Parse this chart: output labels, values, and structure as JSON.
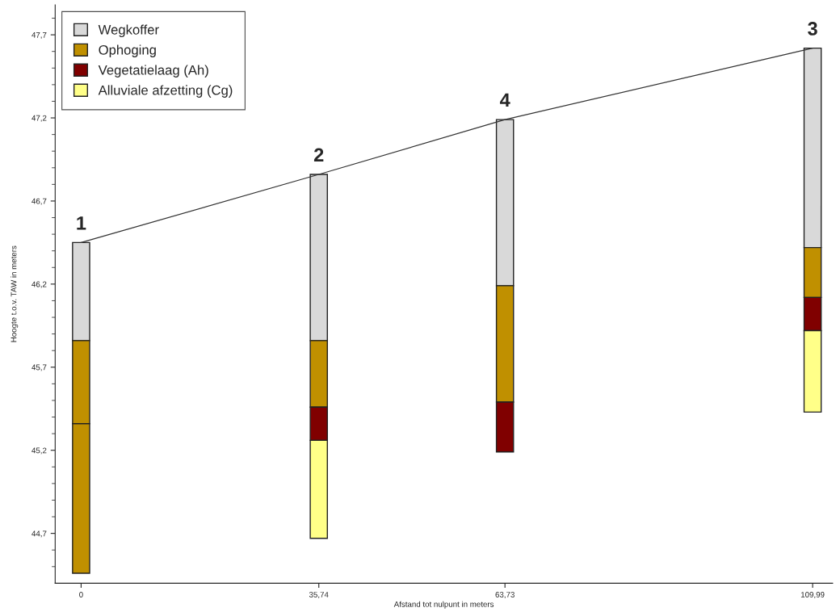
{
  "chart_data": {
    "type": "bar",
    "xlabel": "Afstand tot nulpunt in meters",
    "ylabel": "Hoogte t.o.v. TAW in meters",
    "xlim": [
      -3.9,
      113
    ],
    "ylim": [
      44.4,
      47.88
    ],
    "xticks": [
      0,
      {
        "value": 35.74,
        "label": "35,74"
      },
      {
        "value": 63.73,
        "label": "63,73"
      },
      {
        "value": 109.99,
        "label": "109,99"
      }
    ],
    "yticks": [
      {
        "value": 44.7,
        "label": "44,7"
      },
      {
        "value": 45.2,
        "label": "45,2"
      },
      {
        "value": 45.7,
        "label": "45,7"
      },
      {
        "value": 46.2,
        "label": "46,2"
      },
      {
        "value": 46.7,
        "label": "46,7"
      },
      {
        "value": 47.2,
        "label": "47,2"
      },
      {
        "value": 47.7,
        "label": "47,7"
      }
    ],
    "grid": false,
    "legend": "top left",
    "series": [
      {
        "name": "Wegkoffer",
        "color": "#d9d9d9",
        "x": [
          0,
          35.74,
          63.73,
          109.99
        ],
        "base": [
          45.86,
          45.86,
          46.19,
          46.42
        ],
        "values": [
          0.59,
          1.0,
          1.0,
          1.2
        ]
      },
      {
        "name": "Ophoging",
        "color": "#c09000",
        "x": [
          0,
          35.74,
          63.73,
          109.99
        ],
        "base": [
          45.36,
          45.46,
          45.49,
          46.12
        ],
        "values": [
          0.5,
          0.4,
          0.7,
          0.3
        ]
      },
      {
        "color": "#c09000",
        "x": [
          0
        ],
        "base": [
          44.46
        ],
        "values": [
          0.9
        ]
      },
      {
        "name": "Vegetatielaag (Ah)",
        "color": "#800000",
        "x": [
          35.74,
          63.73,
          109.99
        ],
        "base": [
          45.26,
          45.19,
          45.92
        ],
        "values": [
          0.2,
          0.3,
          0.2
        ]
      },
      {
        "name": "Alluviale afzetting (Cg)",
        "color": "#ffff88",
        "x": [
          35.74,
          109.99
        ],
        "base": [
          44.67,
          45.43
        ],
        "values": [
          0.59,
          0.49
        ]
      },
      {
        "type": "line",
        "color": "#333333",
        "x": [
          0,
          35.74,
          63.73,
          109.99
        ],
        "values": [
          46.45,
          46.86,
          47.19,
          47.62
        ]
      }
    ],
    "annotations": [
      {
        "text": "1",
        "x": 0,
        "y": 46.45
      },
      {
        "text": "2",
        "x": 35.74,
        "y": 46.86
      },
      {
        "text": "4",
        "x": 63.73,
        "y": 47.19
      },
      {
        "text": "3",
        "x": 109.99,
        "y": 47.62
      }
    ]
  }
}
